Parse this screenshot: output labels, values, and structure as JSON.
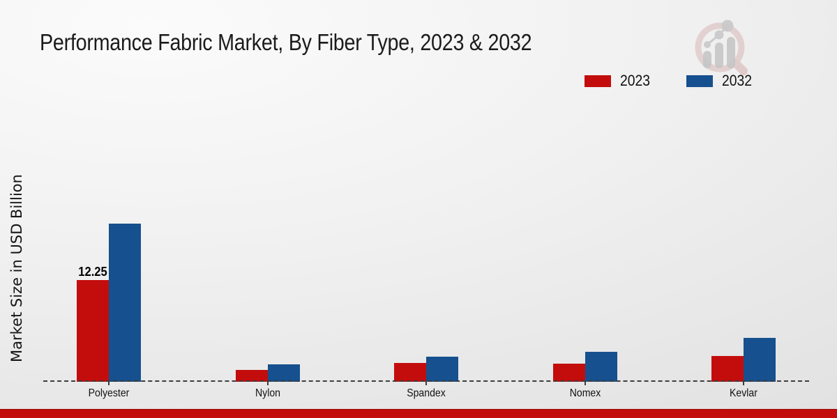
{
  "title": "Performance Fabric Market, By Fiber Type, 2023 & 2032",
  "ylabel": "Market Size in USD Billion",
  "colors": {
    "series_2023": "#c30d0d",
    "series_2032": "#16508e",
    "footer_bar": "#c30d0d",
    "baseline": "#3c3c3c",
    "watermark_ring": "#d9b8b8",
    "watermark_bars": "#c6c6c6"
  },
  "legend": {
    "items": [
      {
        "label": "2023",
        "color": "#c30d0d"
      },
      {
        "label": "2032",
        "color": "#16508e"
      }
    ]
  },
  "chart_data": {
    "type": "bar",
    "title": "Performance Fabric Market, By Fiber Type, 2023 & 2032",
    "xlabel": "",
    "ylabel": "Market Size in USD Billion",
    "categories": [
      "Polyester",
      "Nylon",
      "Spandex",
      "Nomex",
      "Kevlar"
    ],
    "series": [
      {
        "name": "2023",
        "color": "#c30d0d",
        "values": [
          12.25,
          1.45,
          2.25,
          2.15,
          3.1
        ]
      },
      {
        "name": "2032",
        "color": "#16508e",
        "values": [
          19.1,
          2.1,
          3.05,
          3.65,
          5.3
        ]
      }
    ],
    "ylim": [
      0,
      21
    ],
    "grid": false,
    "y_axis_tick_labels": false,
    "legend_position": "top-right",
    "baseline_style": "dashed",
    "data_labels": [
      {
        "series": "2023",
        "category": "Polyester",
        "text": "12.25"
      }
    ]
  }
}
